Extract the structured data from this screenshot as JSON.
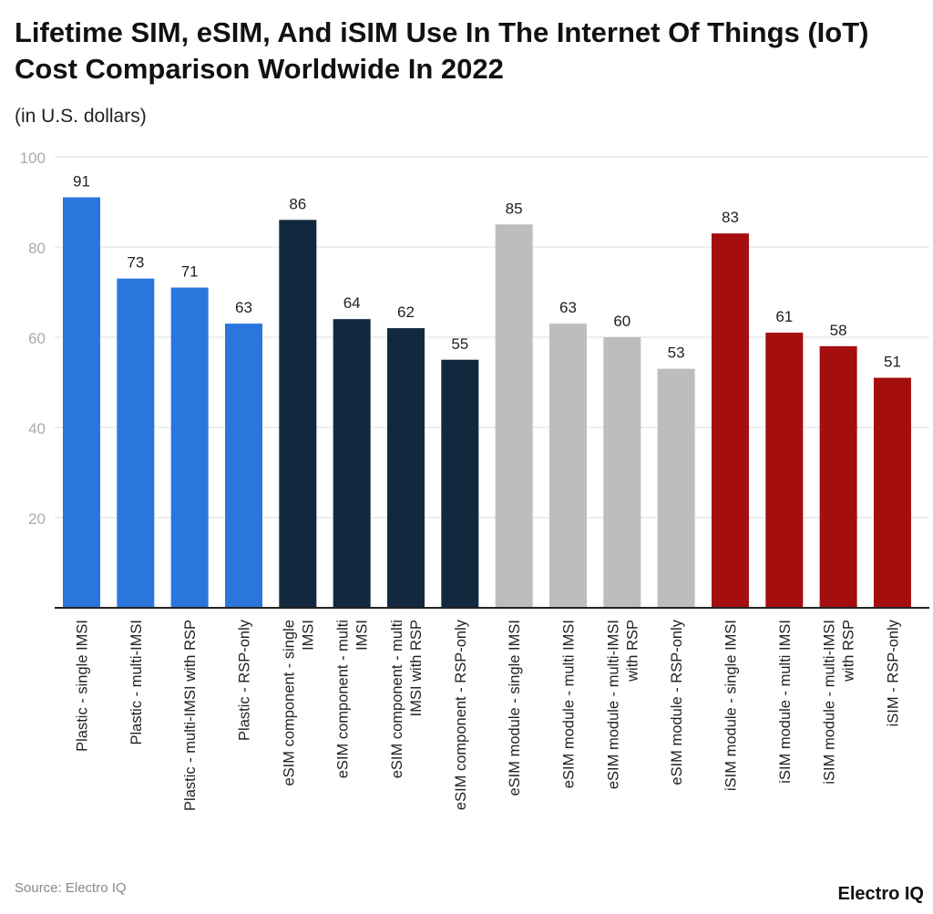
{
  "chart_data": {
    "type": "bar",
    "title": "Lifetime SIM, eSIM, And iSIM Use In The Internet Of Things (IoT) Cost Comparison Worldwide In 2022",
    "subtitle": "(in U.S. dollars)",
    "xlabel": "",
    "ylabel": "",
    "ylim": [
      0,
      100
    ],
    "yticks": [
      20,
      40,
      60,
      80,
      100
    ],
    "grid": true,
    "categories": [
      [
        "Plastic - single IMSI"
      ],
      [
        "Plastic - multi-IMSI"
      ],
      [
        "Plastic - multi-IMSI with RSP"
      ],
      [
        "Plastic - RSP-only"
      ],
      [
        "eSIM component - single",
        "IMSI"
      ],
      [
        "eSIM component - multi",
        "IMSI"
      ],
      [
        "eSIM component - multi",
        "IMSI with RSP"
      ],
      [
        "eSIM component - RSP-only"
      ],
      [
        "eSIM module - single IMSI"
      ],
      [
        "eSIM module - multi IMSI"
      ],
      [
        "eSIM module - multi-IMSI",
        "with RSP"
      ],
      [
        "eSIM module - RSP-only"
      ],
      [
        "iSIM module - single IMSI"
      ],
      [
        "iSIM module - multi IMSI"
      ],
      [
        "iSIM module - multi-IMSI",
        "with RSP"
      ],
      [
        "iSIM - RSP-only"
      ]
    ],
    "values": [
      91,
      73,
      71,
      63,
      86,
      64,
      62,
      55,
      85,
      63,
      60,
      53,
      83,
      61,
      58,
      51
    ],
    "colors": [
      "#2a76dd",
      "#2a76dd",
      "#2a76dd",
      "#2a76dd",
      "#12283f",
      "#12283f",
      "#12283f",
      "#12283f",
      "#bdbdbd",
      "#bdbdbd",
      "#bdbdbd",
      "#bdbdbd",
      "#a50e0e",
      "#a50e0e",
      "#a50e0e",
      "#a50e0e"
    ]
  },
  "footer": {
    "source": "Source: Electro IQ",
    "logo": "Electro IQ"
  }
}
